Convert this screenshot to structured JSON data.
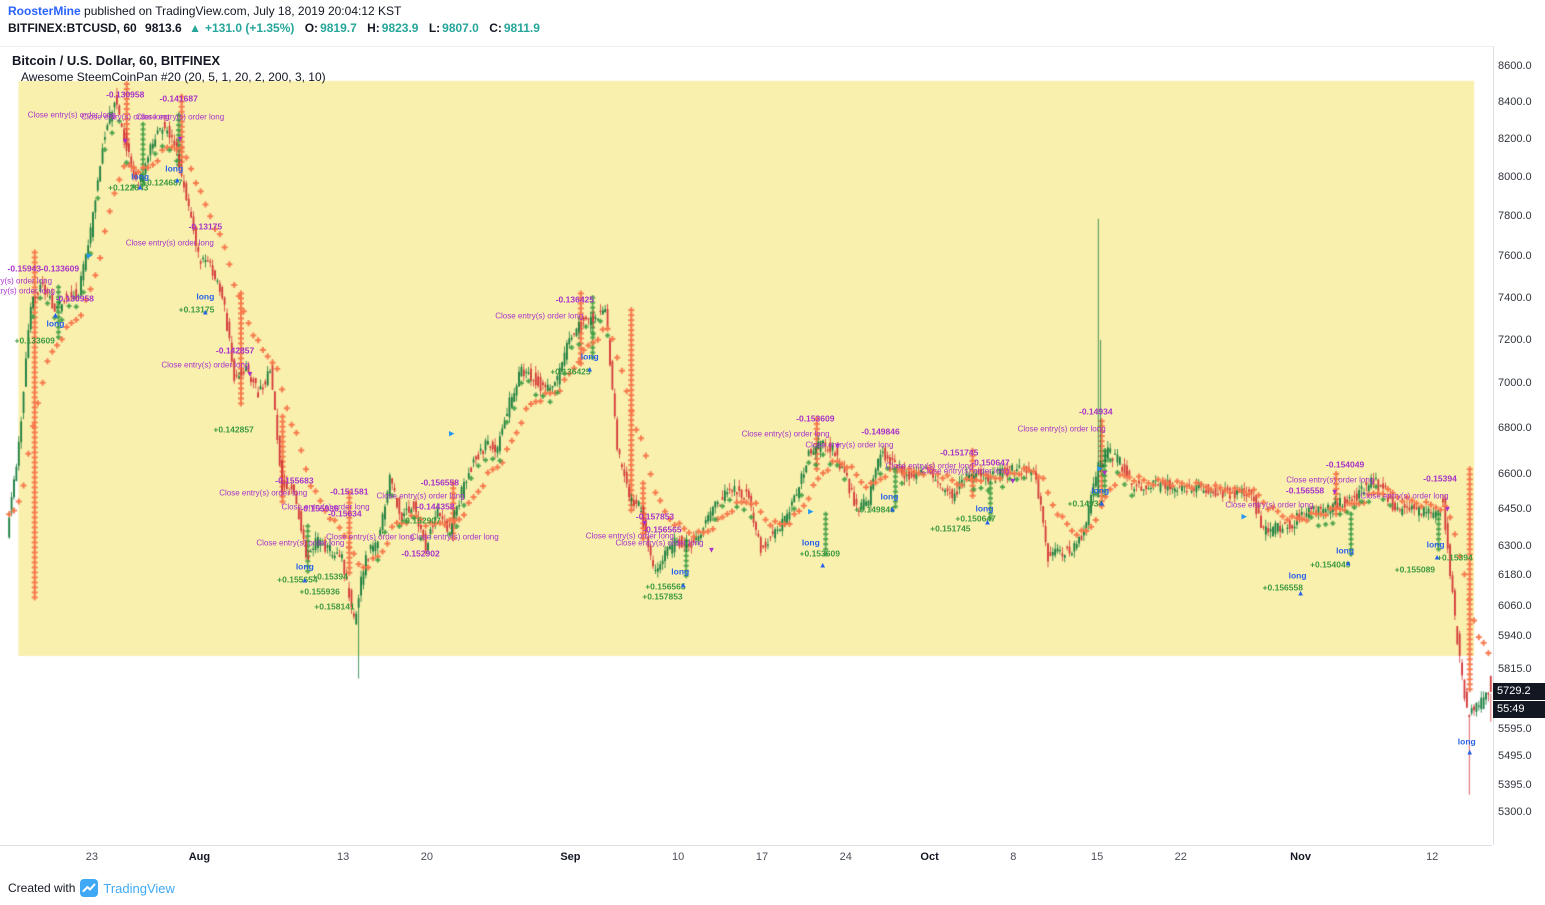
{
  "page": {
    "publish_line": {
      "author": "RoosterMine",
      "rest": " published on TradingView.com, July 18, 2019 20:04:12 KST"
    },
    "symbol_line": {
      "symbol": "BITFINEX:BTCUSD, 60",
      "last": "9813.6",
      "direction": "▲",
      "change": "+131.0 (+1.35%)",
      "ohlc": [
        {
          "k": "O:",
          "v": "9819.7"
        },
        {
          "k": "H:",
          "v": "9823.9"
        },
        {
          "k": "L:",
          "v": "9807.0"
        },
        {
          "k": "C:",
          "v": "9811.9"
        }
      ]
    },
    "footer": {
      "created_with": "Created with",
      "brand": "TradingView"
    }
  },
  "chart_data": {
    "type": "candlestick",
    "symbol": "BITFINEX:BTCUSD",
    "title": "Bitcoin / U.S. Dollar, 60, BITFINEX",
    "subtitle": "Awesome SteemCoinPan #20 (20, 5, 1, 20, 2, 200, 3, 10)",
    "labels": {
      "close_order": "Close entry(s) order long",
      "long": "long"
    },
    "y_axis": {
      "scale": "log",
      "price_min": 5188,
      "price_max": 8712,
      "ticks": [
        8600,
        8400,
        8200,
        8000,
        7800,
        7600,
        7400,
        7200,
        7000,
        6800,
        6600,
        6450,
        6300,
        6180,
        6060,
        5940,
        5815,
        5595,
        5495,
        5395,
        5300
      ],
      "last_price": 5729.2,
      "countdown": "55:49"
    },
    "x_axis": {
      "ticks": [
        {
          "label": "23",
          "t": 0.0565,
          "major": false
        },
        {
          "label": "Aug",
          "t": 0.129,
          "major": true
        },
        {
          "label": "13",
          "t": 0.2258,
          "major": false
        },
        {
          "label": "20",
          "t": 0.2823,
          "major": false
        },
        {
          "label": "Sep",
          "t": 0.379,
          "major": true
        },
        {
          "label": "10",
          "t": 0.4516,
          "major": false
        },
        {
          "label": "17",
          "t": 0.5081,
          "major": false
        },
        {
          "label": "24",
          "t": 0.5645,
          "major": false
        },
        {
          "label": "Oct",
          "t": 0.621,
          "major": true
        },
        {
          "label": "8",
          "t": 0.6774,
          "major": false
        },
        {
          "label": "15",
          "t": 0.7339,
          "major": false
        },
        {
          "label": "22",
          "t": 0.7903,
          "major": false
        },
        {
          "label": "Nov",
          "t": 0.871,
          "major": true
        },
        {
          "label": "12",
          "t": 0.9597,
          "major": false
        }
      ]
    },
    "highlight_region": {
      "t0": 0.007,
      "t1": 0.988,
      "price_top": 8517,
      "price_bottom": 5865,
      "color": "#faf0ae"
    },
    "bars_per_day": 5,
    "daily_closes": [
      6350,
      6720,
      7380,
      7470,
      7330,
      7410,
      7420,
      7720,
      8180,
      8420,
      8150,
      7950,
      8150,
      8280,
      8180,
      7900,
      7600,
      7550,
      7420,
      7020,
      7080,
      6950,
      7060,
      6550,
      6530,
      6250,
      6320,
      6280,
      6250,
      6000,
      6250,
      6320,
      6580,
      6420,
      6470,
      6300,
      6450,
      6360,
      6520,
      6660,
      6720,
      6710,
      6910,
      7060,
      7030,
      6960,
      7010,
      7200,
      7280,
      7300,
      7360,
      6710,
      6500,
      6450,
      6200,
      6260,
      6320,
      6300,
      6350,
      6460,
      6510,
      6530,
      6500,
      6280,
      6350,
      6400,
      6510,
      6700,
      6720,
      6710,
      6600,
      6450,
      6480,
      6700,
      6640,
      6600,
      6600,
      6620,
      6550,
      6500,
      6570,
      6600,
      6580,
      6600,
      6620,
      6620,
      6580,
      6250,
      6270,
      6280,
      6350,
      6600,
      6700,
      6650,
      6550,
      6550,
      6550,
      6550,
      6540,
      6540,
      6540,
      6530,
      6520,
      6520,
      6520,
      6350,
      6370,
      6380,
      6420,
      6450,
      6430,
      6470,
      6480,
      6520,
      6570,
      6540,
      6450,
      6450,
      6440,
      6430,
      6480,
      6000,
      5650,
      5680,
      5729.2
    ],
    "spike": {
      "t": 0.7339,
      "high": 7788
    },
    "low_wick": {
      "t": 0.236,
      "low": 5780
    },
    "final_low": {
      "t": 0.984,
      "low": 5360
    },
    "exit_columns": [
      {
        "t": 0.018,
        "a": 7620,
        "b": 6080
      },
      {
        "t": 0.08,
        "a": 8500,
        "b": 8150
      },
      {
        "t": 0.117,
        "a": 8430,
        "b": 8060
      },
      {
        "t": 0.157,
        "a": 7420,
        "b": 6900
      },
      {
        "t": 0.185,
        "a": 6850,
        "b": 6480
      },
      {
        "t": 0.23,
        "a": 6520,
        "b": 6180
      },
      {
        "t": 0.3,
        "a": 6560,
        "b": 6330
      },
      {
        "t": 0.386,
        "a": 7420,
        "b": 7080
      },
      {
        "t": 0.42,
        "a": 7340,
        "b": 6430
      },
      {
        "t": 0.428,
        "a": 6560,
        "b": 6310
      },
      {
        "t": 0.545,
        "a": 6840,
        "b": 6620
      },
      {
        "t": 0.65,
        "a": 6700,
        "b": 6490
      },
      {
        "t": 0.737,
        "a": 6830,
        "b": 6450
      },
      {
        "t": 0.895,
        "a": 6600,
        "b": 6430
      },
      {
        "t": 0.985,
        "a": 6620,
        "b": 5730
      }
    ],
    "entry_columns": [
      {
        "t": 0.034,
        "a": 7450,
        "b": 7200
      },
      {
        "t": 0.091,
        "a": 8280,
        "b": 7950
      },
      {
        "t": 0.115,
        "a": 8330,
        "b": 8050
      },
      {
        "t": 0.202,
        "a": 6380,
        "b": 6180
      },
      {
        "t": 0.394,
        "a": 7400,
        "b": 7110
      },
      {
        "t": 0.457,
        "a": 6320,
        "b": 6160
      },
      {
        "t": 0.551,
        "a": 6430,
        "b": 6250
      },
      {
        "t": 0.598,
        "a": 6610,
        "b": 6450
      },
      {
        "t": 0.662,
        "a": 6560,
        "b": 6395
      },
      {
        "t": 0.739,
        "a": 6700,
        "b": 6500
      },
      {
        "t": 0.905,
        "a": 6430,
        "b": 6255
      },
      {
        "t": 0.964,
        "a": 6430,
        "b": 6285
      }
    ],
    "annotations": [
      {
        "k": "c",
        "t": 0.0,
        "p": 7478
      },
      {
        "k": "c",
        "t": 0.002,
        "p": 7430
      },
      {
        "k": "c",
        "t": 0.043,
        "p": 8330
      },
      {
        "k": "c",
        "t": 0.079,
        "p": 8322
      },
      {
        "k": "c",
        "t": 0.116,
        "p": 8322
      },
      {
        "k": "c",
        "t": 0.109,
        "p": 7668
      },
      {
        "k": "c",
        "t": 0.133,
        "p": 7082
      },
      {
        "k": "c",
        "t": 0.172,
        "p": 6520
      },
      {
        "k": "c",
        "t": 0.197,
        "p": 6312
      },
      {
        "k": "c",
        "t": 0.214,
        "p": 6462
      },
      {
        "k": "c",
        "t": 0.244,
        "p": 6336
      },
      {
        "k": "c",
        "t": 0.278,
        "p": 6508
      },
      {
        "k": "c",
        "t": 0.301,
        "p": 6335
      },
      {
        "k": "c",
        "t": 0.358,
        "p": 7312
      },
      {
        "k": "c",
        "t": 0.419,
        "p": 6340
      },
      {
        "k": "c",
        "t": 0.439,
        "p": 6312
      },
      {
        "k": "c",
        "t": 0.524,
        "p": 6775
      },
      {
        "k": "c",
        "t": 0.567,
        "p": 6725
      },
      {
        "k": "c",
        "t": 0.621,
        "p": 6635
      },
      {
        "k": "c",
        "t": 0.645,
        "p": 6612
      },
      {
        "k": "c",
        "t": 0.71,
        "p": 6795
      },
      {
        "k": "c",
        "t": 0.85,
        "p": 6470
      },
      {
        "k": "c",
        "t": 0.891,
        "p": 6575
      },
      {
        "k": "c",
        "t": 0.941,
        "p": 6505
      },
      {
        "k": "n",
        "t": 0.079,
        "p": 8442,
        "s": "-0.130958"
      },
      {
        "k": "n",
        "t": 0.115,
        "p": 8418,
        "s": "-0.141687"
      },
      {
        "k": "n",
        "t": 0.011,
        "p": 7540,
        "s": "-0.15943"
      },
      {
        "k": "n",
        "t": 0.035,
        "p": 7540,
        "s": "-0.133609"
      },
      {
        "k": "n",
        "t": 0.045,
        "p": 7392,
        "s": "-0.130958"
      },
      {
        "k": "n",
        "t": 0.133,
        "p": 7745,
        "s": "-0.13175"
      },
      {
        "k": "n",
        "t": 0.153,
        "p": 7148,
        "s": "-0.142857"
      },
      {
        "k": "n",
        "t": 0.193,
        "p": 6572,
        "s": "-0.155683"
      },
      {
        "k": "n",
        "t": 0.21,
        "p": 6452,
        "s": "-0.155936"
      },
      {
        "k": "n",
        "t": 0.227,
        "p": 6430,
        "s": "-0.15634"
      },
      {
        "k": "n",
        "t": 0.23,
        "p": 6525,
        "s": "-0.151581"
      },
      {
        "k": "n",
        "t": 0.278,
        "p": 6265,
        "s": "-0.152902"
      },
      {
        "k": "n",
        "t": 0.288,
        "p": 6460,
        "s": "-0.144358"
      },
      {
        "k": "n",
        "t": 0.291,
        "p": 6560,
        "s": "-0.156558"
      },
      {
        "k": "n",
        "t": 0.382,
        "p": 7390,
        "s": "-0.136425"
      },
      {
        "k": "n",
        "t": 0.436,
        "p": 6420,
        "s": "-0.157853"
      },
      {
        "k": "n",
        "t": 0.441,
        "p": 6366,
        "s": "-0.156565"
      },
      {
        "k": "n",
        "t": 0.544,
        "p": 6838,
        "s": "-0.153609"
      },
      {
        "k": "n",
        "t": 0.588,
        "p": 6780,
        "s": "-0.149846"
      },
      {
        "k": "n",
        "t": 0.641,
        "p": 6690,
        "s": "-0.151745"
      },
      {
        "k": "n",
        "t": 0.662,
        "p": 6648,
        "s": "-0.150647"
      },
      {
        "k": "n",
        "t": 0.733,
        "p": 6872,
        "s": "-0.14934"
      },
      {
        "k": "n",
        "t": 0.874,
        "p": 6528,
        "s": "-0.156558"
      },
      {
        "k": "n",
        "t": 0.901,
        "p": 6638,
        "s": "-0.154049"
      },
      {
        "k": "n",
        "t": 0.965,
        "p": 6578,
        "s": "-0.15394"
      },
      {
        "k": "p",
        "t": 0.018,
        "p": 7195,
        "s": "+0.133609"
      },
      {
        "k": "p",
        "t": 0.081,
        "p": 7945,
        "s": "+0.122643"
      },
      {
        "k": "p",
        "t": 0.104,
        "p": 7972,
        "s": "+0.124687"
      },
      {
        "k": "p",
        "t": 0.127,
        "p": 7342,
        "s": "+0.13175"
      },
      {
        "k": "p",
        "t": 0.152,
        "p": 6790,
        "s": "+0.142857"
      },
      {
        "k": "p",
        "t": 0.195,
        "p": 6160,
        "s": "+0.155654"
      },
      {
        "k": "p",
        "t": 0.21,
        "p": 6112,
        "s": "+0.155936"
      },
      {
        "k": "p",
        "t": 0.217,
        "p": 6172,
        "s": "+0.15394"
      },
      {
        "k": "p",
        "t": 0.22,
        "p": 6055,
        "s": "+0.158141"
      },
      {
        "k": "p",
        "t": 0.278,
        "p": 6402,
        "s": "+0.152907"
      },
      {
        "k": "p",
        "t": 0.379,
        "p": 7052,
        "s": "+0.136425"
      },
      {
        "k": "p",
        "t": 0.441,
        "p": 6092,
        "s": "+0.157853"
      },
      {
        "k": "p",
        "t": 0.443,
        "p": 6132,
        "s": "+0.156565"
      },
      {
        "k": "p",
        "t": 0.547,
        "p": 6265,
        "s": "+0.153609"
      },
      {
        "k": "p",
        "t": 0.584,
        "p": 6448,
        "s": "+0.149846"
      },
      {
        "k": "p",
        "t": 0.635,
        "p": 6368,
        "s": "+0.151745"
      },
      {
        "k": "p",
        "t": 0.652,
        "p": 6408,
        "s": "+0.150647"
      },
      {
        "k": "p",
        "t": 0.726,
        "p": 6472,
        "s": "+0.14934"
      },
      {
        "k": "p",
        "t": 0.859,
        "p": 6128,
        "s": "+0.156558"
      },
      {
        "k": "p",
        "t": 0.891,
        "p": 6222,
        "s": "+0.154049"
      },
      {
        "k": "p",
        "t": 0.948,
        "p": 6202,
        "s": "+0.155089"
      },
      {
        "k": "p",
        "t": 0.975,
        "p": 6248,
        "s": "+0.15394"
      },
      {
        "k": "l",
        "t": 0.032,
        "p": 7272
      },
      {
        "k": "l",
        "t": 0.089,
        "p": 8002
      },
      {
        "k": "l",
        "t": 0.112,
        "p": 8042
      },
      {
        "k": "l",
        "t": 0.133,
        "p": 7402
      },
      {
        "k": "l",
        "t": 0.2,
        "p": 6212
      },
      {
        "k": "l",
        "t": 0.392,
        "p": 7122
      },
      {
        "k": "l",
        "t": 0.453,
        "p": 6192
      },
      {
        "k": "l",
        "t": 0.541,
        "p": 6312
      },
      {
        "k": "l",
        "t": 0.594,
        "p": 6502
      },
      {
        "k": "l",
        "t": 0.658,
        "p": 6452
      },
      {
        "k": "l",
        "t": 0.736,
        "p": 6528
      },
      {
        "k": "l",
        "t": 0.869,
        "p": 6178
      },
      {
        "k": "l",
        "t": 0.901,
        "p": 6278
      },
      {
        "k": "l",
        "t": 0.962,
        "p": 6302
      },
      {
        "k": "l",
        "t": 0.983,
        "p": 5548
      },
      {
        "k": "u",
        "t": 0.032,
        "p": 7318
      },
      {
        "k": "u",
        "t": 0.089,
        "p": 7950
      },
      {
        "k": "u",
        "t": 0.114,
        "p": 7988
      },
      {
        "k": "u",
        "t": 0.133,
        "p": 7332
      },
      {
        "k": "u",
        "t": 0.2,
        "p": 6160
      },
      {
        "k": "u",
        "t": 0.392,
        "p": 7066
      },
      {
        "k": "u",
        "t": 0.455,
        "p": 6140
      },
      {
        "k": "u",
        "t": 0.549,
        "p": 6222
      },
      {
        "k": "u",
        "t": 0.596,
        "p": 6452
      },
      {
        "k": "u",
        "t": 0.66,
        "p": 6396
      },
      {
        "k": "u",
        "t": 0.737,
        "p": 6478
      },
      {
        "k": "u",
        "t": 0.871,
        "p": 6108
      },
      {
        "k": "u",
        "t": 0.903,
        "p": 6228
      },
      {
        "k": "u",
        "t": 0.963,
        "p": 6252
      },
      {
        "k": "u",
        "t": 0.985,
        "p": 5512
      },
      {
        "k": "d",
        "t": 0.079,
        "p": 8192
      },
      {
        "k": "d",
        "t": 0.116,
        "p": 8202
      },
      {
        "k": "d",
        "t": 0.163,
        "p": 7042
      },
      {
        "k": "d",
        "t": 0.429,
        "p": 6392
      },
      {
        "k": "d",
        "t": 0.474,
        "p": 6282
      },
      {
        "k": "d",
        "t": 0.559,
        "p": 6722
      },
      {
        "k": "d",
        "t": 0.677,
        "p": 6572
      },
      {
        "k": "d",
        "t": 0.739,
        "p": 6602
      },
      {
        "k": "d",
        "t": 0.894,
        "p": 6522
      },
      {
        "k": "d",
        "t": 0.97,
        "p": 6452
      },
      {
        "k": "r",
        "t": 0.055,
        "p": 7602
      },
      {
        "k": "r",
        "t": 0.299,
        "p": 6772
      },
      {
        "k": "r",
        "t": 0.541,
        "p": 6438
      },
      {
        "k": "r",
        "t": 0.736,
        "p": 6622
      },
      {
        "k": "r",
        "t": 0.833,
        "p": 6418
      }
    ],
    "colors": {
      "up": "#1b7e3f",
      "down": "#d43a3a",
      "ribbon": "rgba(246,118,74,0.92)",
      "entry_marks": "rgba(67,160,71,0.85)",
      "close_text": "#a832c8",
      "profit_text": "#3d9a40",
      "long_text": "#2962e8",
      "axis_text": "#30343c",
      "badge_bg": "#131722",
      "highlight": "#faf0ae",
      "header_green": "#26a69a",
      "link_blue": "#2962ff",
      "brand_blue": "#3fa9f5"
    }
  }
}
